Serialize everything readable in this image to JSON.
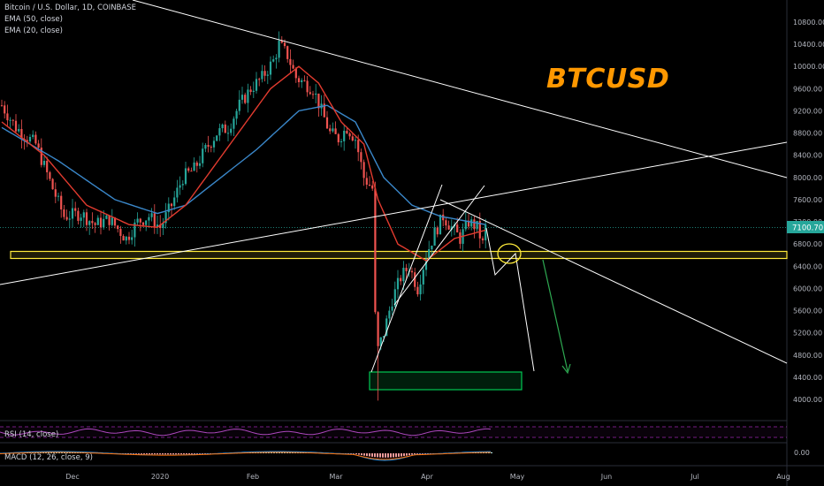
{
  "header": {
    "symbol": "Bitcoin / U.S. Dollar, 1D, COINBASE",
    "ema50": "EMA (50, close)",
    "ema20": "EMA (20, close)"
  },
  "overlay_title": "BTCUSD",
  "rsi_label": "RSI (14, close)",
  "macd_label": "MACD (12, 26, close, 9)",
  "colors": {
    "background": "#000000",
    "up": "#26a69a",
    "down": "#ef5350",
    "ema50": "#3a87c9",
    "ema20": "#e23b2f",
    "support": "#ffeb3b",
    "target": "#00c853",
    "title": "#ff9800",
    "rsi": "#9c27b0"
  },
  "chart_data": {
    "type": "candlestick",
    "price_axis_ticks": [
      "10800.00",
      "10400.00",
      "10000.00",
      "9600.00",
      "9200.00",
      "8800.00",
      "8400.00",
      "8000.00",
      "7600.00",
      "7200.00",
      "6800.00",
      "6400.00",
      "6000.00",
      "5600.00",
      "5200.00",
      "4800.00",
      "4400.00",
      "4000.00"
    ],
    "time_axis_ticks": [
      "Dec",
      "2020",
      "Feb",
      "Mar",
      "Apr",
      "May",
      "Jun",
      "Jul",
      "Aug"
    ],
    "last_price": "7100.70",
    "macd_axis_tick": "0.00",
    "ylim": [
      3700,
      11200
    ],
    "price_keypoints": [
      [
        0,
        9300
      ],
      [
        5,
        8900
      ],
      [
        12,
        8600
      ],
      [
        18,
        7800
      ],
      [
        22,
        7300
      ],
      [
        28,
        7350
      ],
      [
        33,
        7150
      ],
      [
        38,
        7250
      ],
      [
        44,
        6900
      ],
      [
        48,
        7200
      ],
      [
        52,
        7300
      ],
      [
        56,
        7100
      ],
      [
        60,
        7500
      ],
      [
        64,
        8000
      ],
      [
        68,
        8150
      ],
      [
        72,
        8500
      ],
      [
        76,
        8800
      ],
      [
        80,
        8900
      ],
      [
        84,
        9300
      ],
      [
        88,
        9600
      ],
      [
        92,
        9800
      ],
      [
        96,
        10100
      ],
      [
        98,
        10400
      ],
      [
        101,
        10200
      ],
      [
        104,
        9800
      ],
      [
        107,
        9700
      ],
      [
        110,
        9600
      ],
      [
        113,
        9200
      ],
      [
        116,
        8800
      ],
      [
        119,
        8700
      ],
      [
        122,
        8900
      ],
      [
        125,
        8700
      ],
      [
        128,
        8000
      ],
      [
        131,
        7800
      ],
      [
        132,
        5500
      ],
      [
        133,
        4900
      ],
      [
        135,
        5200
      ],
      [
        138,
        5800
      ],
      [
        141,
        6200
      ],
      [
        144,
        6400
      ],
      [
        147,
        6000
      ],
      [
        150,
        6600
      ],
      [
        153,
        7000
      ],
      [
        156,
        7300
      ],
      [
        159,
        7100
      ],
      [
        162,
        6900
      ],
      [
        165,
        7200
      ],
      [
        168,
        7100
      ],
      [
        170,
        6800
      ],
      [
        171,
        7100
      ]
    ],
    "ema50_keypoints": [
      [
        0,
        8900
      ],
      [
        20,
        8300
      ],
      [
        40,
        7600
      ],
      [
        55,
        7350
      ],
      [
        65,
        7500
      ],
      [
        75,
        7900
      ],
      [
        90,
        8500
      ],
      [
        105,
        9200
      ],
      [
        115,
        9300
      ],
      [
        125,
        9000
      ],
      [
        135,
        8000
      ],
      [
        145,
        7500
      ],
      [
        155,
        7300
      ],
      [
        171,
        7150
      ]
    ],
    "ema20_keypoints": [
      [
        0,
        9000
      ],
      [
        15,
        8400
      ],
      [
        30,
        7500
      ],
      [
        45,
        7150
      ],
      [
        55,
        7100
      ],
      [
        65,
        7500
      ],
      [
        75,
        8200
      ],
      [
        85,
        8900
      ],
      [
        95,
        9600
      ],
      [
        105,
        10000
      ],
      [
        112,
        9700
      ],
      [
        120,
        9000
      ],
      [
        128,
        8600
      ],
      [
        133,
        7600
      ],
      [
        140,
        6800
      ],
      [
        150,
        6500
      ],
      [
        160,
        6900
      ],
      [
        171,
        7050
      ]
    ]
  }
}
